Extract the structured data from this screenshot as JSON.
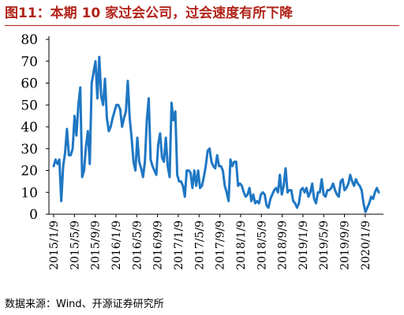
{
  "header": {
    "title": "图11：本期 10 家过会公司，过会速度有所下降"
  },
  "footer": {
    "source": "数据来源：Wind、开源证券研究所"
  },
  "chart_data": {
    "type": "line",
    "title": "",
    "xlabel": "",
    "ylabel": "",
    "ylim": [
      0,
      80
    ],
    "yticks": [
      0,
      10,
      20,
      30,
      40,
      50,
      60,
      70,
      80
    ],
    "xtick_labels": [
      "2015/1/9",
      "2015/5/9",
      "2015/9/9",
      "2016/1/9",
      "2016/5/9",
      "2016/9/9",
      "2017/1/9",
      "2017/5/9",
      "2017/9/9",
      "2018/1/9",
      "2018/5/9",
      "2018/9/9",
      "2019/1/9",
      "2019/5/9",
      "2019/9/9",
      "2020/1/9"
    ],
    "grid": false,
    "legend": "none",
    "line_color": "#1f77c4",
    "series": [
      {
        "name": "",
        "values": [
          22,
          25,
          23,
          25,
          6,
          22,
          28,
          39,
          27,
          27,
          30,
          45,
          36,
          50,
          58,
          17,
          20,
          31,
          38,
          23,
          60,
          65,
          70,
          53,
          72,
          54,
          50,
          62,
          44,
          38,
          40,
          44,
          47,
          50,
          50,
          48,
          40,
          44,
          47,
          61,
          44,
          35,
          24,
          20,
          35,
          24,
          21,
          17,
          24,
          43,
          53,
          25,
          22,
          20,
          18,
          32,
          37,
          26,
          24,
          35,
          22,
          17,
          51,
          43,
          47,
          18,
          15,
          15,
          13,
          8,
          20,
          20,
          19,
          12,
          20,
          13,
          20,
          12,
          13,
          17,
          22,
          29,
          30,
          24,
          22,
          21,
          27,
          22,
          22,
          20,
          13,
          10,
          6,
          25,
          22,
          24,
          24,
          13,
          14,
          13,
          10,
          8,
          9,
          12,
          6,
          9,
          5,
          6,
          5,
          9,
          10,
          9,
          4,
          3,
          7,
          9,
          11,
          12,
          10,
          18,
          9,
          13,
          21,
          10,
          11,
          11,
          6,
          5,
          3,
          5,
          11,
          12,
          10,
          12,
          8,
          10,
          14,
          7,
          5,
          10,
          10,
          16,
          9,
          8,
          11,
          11,
          12,
          14,
          11,
          9,
          8,
          15,
          16,
          11,
          12,
          14,
          18,
          15,
          13,
          16,
          14,
          13,
          11,
          5,
          1,
          3,
          5,
          8,
          7,
          10,
          12,
          10
        ]
      }
    ]
  }
}
